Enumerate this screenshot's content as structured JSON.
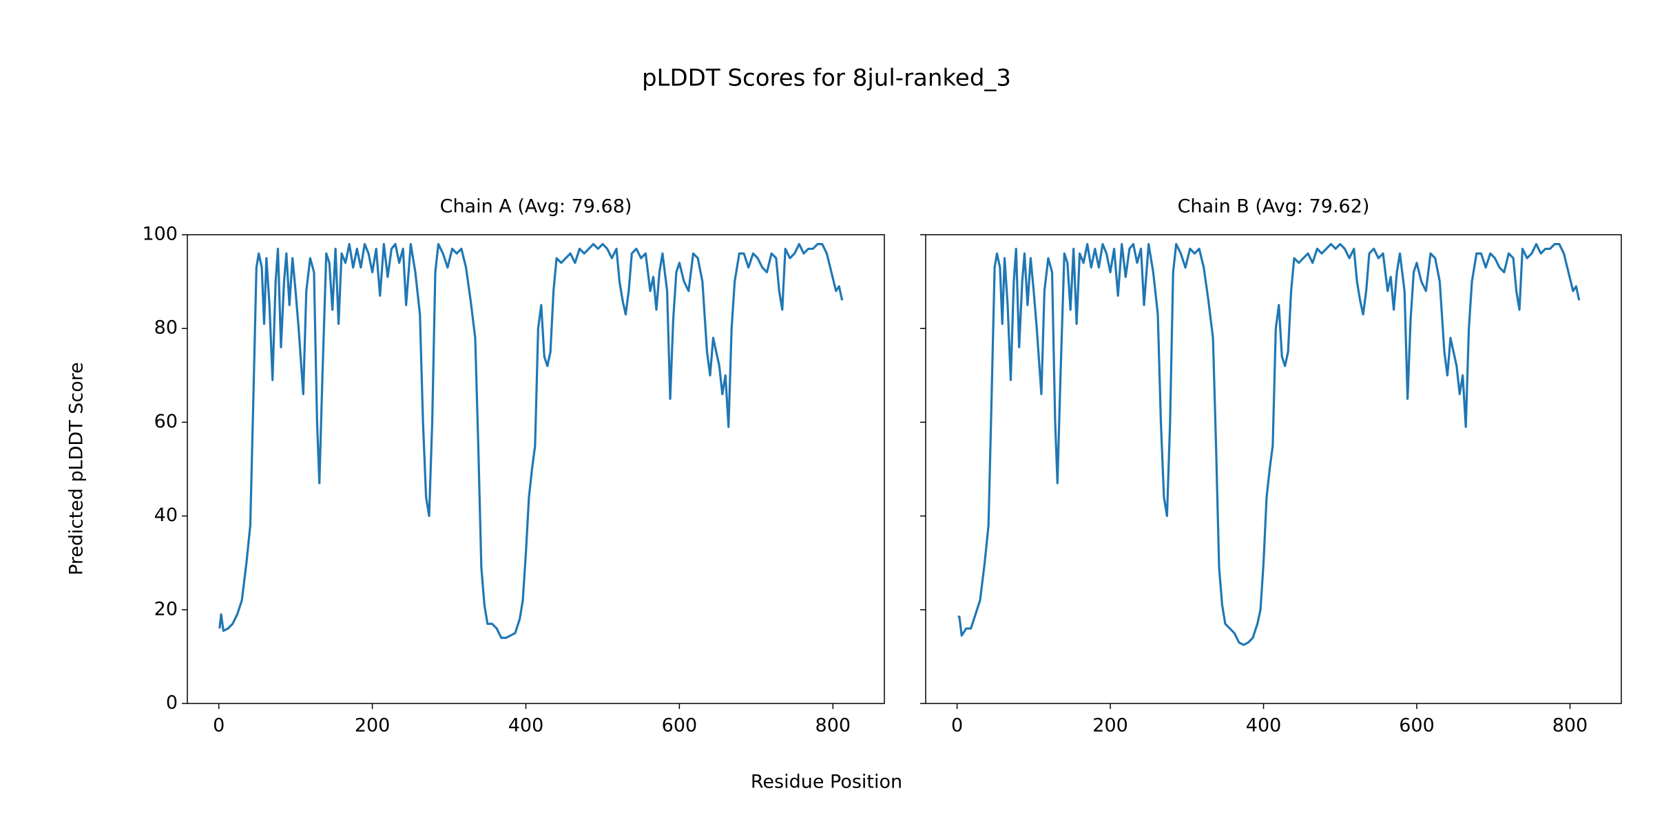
{
  "title": "pLDDT Scores for 8jul-ranked_3",
  "xlabel": "Residue Position",
  "ylabel": "Predicted pLDDT Score",
  "chart_data": [
    {
      "type": "line",
      "title": "Chain A (Avg: 79.68)",
      "xlim": [
        -41,
        867
      ],
      "ylim": [
        0,
        100
      ],
      "xticks": [
        0,
        200,
        400,
        600,
        800
      ],
      "yticks": [
        0,
        20,
        40,
        60,
        80,
        100
      ],
      "x": [
        1,
        3,
        6,
        12,
        18,
        24,
        30,
        36,
        41,
        45,
        49,
        52,
        56,
        59,
        62,
        66,
        70,
        74,
        77,
        81,
        85,
        88,
        92,
        96,
        100,
        104,
        110,
        114,
        119,
        124,
        128,
        131,
        135,
        140,
        144,
        148,
        152,
        156,
        160,
        165,
        170,
        175,
        180,
        185,
        190,
        195,
        200,
        205,
        210,
        215,
        220,
        225,
        230,
        235,
        240,
        244,
        250,
        256,
        262,
        266,
        270,
        274,
        278,
        282,
        286,
        292,
        298,
        304,
        310,
        316,
        322,
        328,
        334,
        338,
        342,
        346,
        350,
        356,
        362,
        368,
        374,
        380,
        386,
        392,
        396,
        400,
        404,
        408,
        412,
        416,
        420,
        424,
        428,
        432,
        436,
        440,
        446,
        452,
        458,
        464,
        470,
        476,
        482,
        488,
        494,
        500,
        506,
        512,
        518,
        522,
        526,
        530,
        534,
        538,
        544,
        550,
        556,
        562,
        566,
        570,
        574,
        578,
        584,
        588,
        592,
        596,
        600,
        606,
        612,
        618,
        624,
        630,
        636,
        640,
        644,
        648,
        652,
        656,
        660,
        664,
        668,
        672,
        678,
        684,
        690,
        696,
        702,
        708,
        714,
        720,
        726,
        730,
        734,
        738,
        744,
        750,
        756,
        762,
        768,
        774,
        780,
        786,
        792,
        798,
        804,
        808,
        812
      ],
      "series": [
        {
          "name": "Chain A",
          "color": "#1f77b4",
          "values": [
            16,
            19,
            15.5,
            16,
            17,
            19,
            22,
            30,
            38,
            65,
            93,
            96,
            93,
            81,
            95,
            85,
            69,
            90,
            97,
            76,
            90,
            96,
            85,
            95,
            88,
            80,
            66,
            88,
            95,
            92,
            60,
            47,
            70,
            96,
            94,
            84,
            97,
            81,
            96,
            94,
            98,
            93,
            97,
            93,
            98,
            96,
            92,
            97,
            87,
            98,
            91,
            97,
            98,
            94,
            97,
            85,
            98,
            92,
            83,
            60,
            44,
            40,
            60,
            92,
            98,
            96,
            93,
            97,
            96,
            97,
            93,
            86,
            78,
            55,
            29,
            21,
            17,
            17,
            16,
            14,
            14,
            14.5,
            15,
            18,
            22,
            32,
            44,
            50,
            55,
            80,
            85,
            74,
            72,
            75,
            88,
            95,
            94,
            95,
            96,
            94,
            97,
            96,
            97,
            98,
            97,
            98,
            97,
            95,
            97,
            90,
            86,
            83,
            88,
            96,
            97,
            95,
            96,
            88,
            91,
            84,
            92,
            96,
            88,
            65,
            82,
            92,
            94,
            90,
            88,
            96,
            95,
            90,
            75,
            70,
            78,
            75,
            72,
            66,
            70,
            59,
            80,
            90,
            96,
            96,
            93,
            96,
            95,
            93,
            92,
            96,
            95,
            88,
            84,
            97,
            95,
            96,
            98,
            96,
            97,
            97,
            98,
            98,
            96,
            92,
            88,
            89,
            86
          ]
        }
      ]
    },
    {
      "type": "line",
      "title": "Chain B (Avg: 79.62)",
      "xlim": [
        -41,
        867
      ],
      "ylim": [
        0,
        100
      ],
      "xticks": [
        0,
        200,
        400,
        600,
        800
      ],
      "yticks": [
        0,
        20,
        40,
        60,
        80,
        100
      ],
      "x": [
        1,
        3,
        6,
        12,
        18,
        24,
        30,
        36,
        41,
        45,
        49,
        52,
        56,
        59,
        62,
        66,
        70,
        74,
        77,
        81,
        85,
        88,
        92,
        96,
        100,
        104,
        110,
        114,
        119,
        124,
        128,
        131,
        135,
        140,
        144,
        148,
        152,
        156,
        160,
        165,
        170,
        175,
        180,
        185,
        190,
        195,
        200,
        205,
        210,
        215,
        220,
        225,
        230,
        235,
        240,
        244,
        250,
        256,
        262,
        266,
        270,
        274,
        278,
        282,
        286,
        292,
        298,
        304,
        310,
        316,
        322,
        328,
        334,
        338,
        342,
        346,
        350,
        356,
        362,
        368,
        374,
        380,
        386,
        392,
        396,
        400,
        404,
        408,
        412,
        416,
        420,
        424,
        428,
        432,
        436,
        440,
        446,
        452,
        458,
        464,
        470,
        476,
        482,
        488,
        494,
        500,
        506,
        512,
        518,
        522,
        526,
        530,
        534,
        538,
        544,
        550,
        556,
        562,
        566,
        570,
        574,
        578,
        584,
        588,
        592,
        596,
        600,
        606,
        612,
        618,
        624,
        630,
        636,
        640,
        644,
        648,
        652,
        656,
        660,
        664,
        668,
        672,
        678,
        684,
        690,
        696,
        702,
        708,
        714,
        720,
        726,
        730,
        734,
        738,
        744,
        750,
        756,
        762,
        768,
        774,
        780,
        786,
        792,
        798,
        804,
        808,
        812
      ],
      "series": [
        {
          "name": "Chain B",
          "color": "#1f77b4",
          "values": [
            18.5,
            18.5,
            14.5,
            16,
            16,
            19,
            22,
            30,
            38,
            65,
            93,
            96,
            93,
            81,
            95,
            85,
            69,
            90,
            97,
            76,
            90,
            96,
            85,
            95,
            88,
            80,
            66,
            88,
            95,
            92,
            60,
            47,
            70,
            96,
            94,
            84,
            97,
            81,
            96,
            94,
            98,
            93,
            97,
            93,
            98,
            96,
            92,
            97,
            87,
            98,
            91,
            97,
            98,
            94,
            97,
            85,
            98,
            92,
            83,
            60,
            44,
            40,
            60,
            92,
            98,
            96,
            93,
            97,
            96,
            97,
            93,
            86,
            78,
            55,
            29,
            21,
            17,
            16,
            15,
            13,
            12.5,
            13,
            14,
            17,
            20,
            30,
            44,
            50,
            55,
            80,
            85,
            74,
            72,
            75,
            88,
            95,
            94,
            95,
            96,
            94,
            97,
            96,
            97,
            98,
            97,
            98,
            97,
            95,
            97,
            90,
            86,
            83,
            88,
            96,
            97,
            95,
            96,
            88,
            91,
            84,
            92,
            96,
            88,
            65,
            82,
            92,
            94,
            90,
            88,
            96,
            95,
            90,
            75,
            70,
            78,
            75,
            72,
            66,
            70,
            59,
            80,
            90,
            96,
            96,
            93,
            96,
            95,
            93,
            92,
            96,
            95,
            88,
            84,
            97,
            95,
            96,
            98,
            96,
            97,
            97,
            98,
            98,
            96,
            92,
            88,
            89,
            86
          ]
        }
      ]
    }
  ]
}
